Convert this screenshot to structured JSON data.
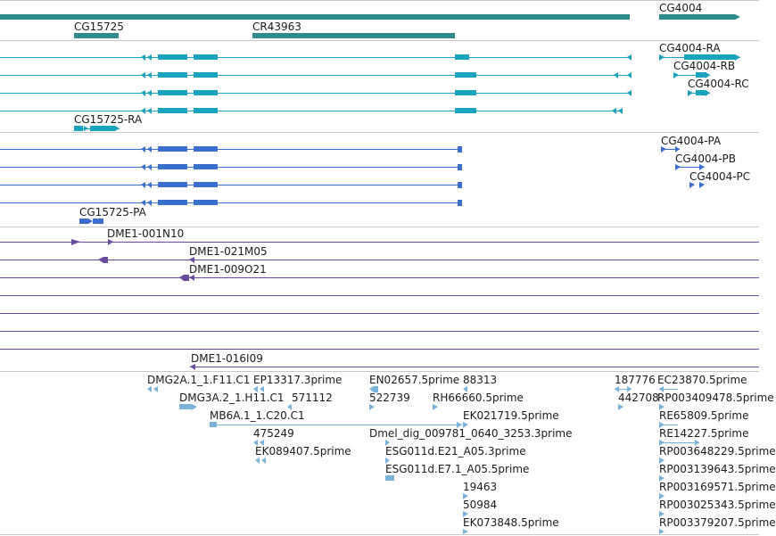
{
  "colors": {
    "gene": "#2e8b8b",
    "transcript_rna": "#1aa3bf",
    "transcript_protein": "#3a6fd0",
    "clone": "#6a4a9e",
    "est": "#7ab3d9",
    "separator": "#c8c8c8"
  },
  "genes": {
    "cg4004": "CG4004",
    "cg15725": "CG15725",
    "cr43963": "CR43963"
  },
  "transcripts": {
    "ra": "CG4004-RA",
    "rb": "CG4004-RB",
    "rc": "CG4004-RC",
    "cg15725_ra": "CG15725-RA"
  },
  "proteins": {
    "pa": "CG4004-PA",
    "pb": "CG4004-PB",
    "pc": "CG4004-PC",
    "cg15725_pa": "CG15725-PA"
  },
  "clones": {
    "c1": "DME1-001N10",
    "c2": "DME1-021M05",
    "c3": "DME1-009O21",
    "c4": "DME1-016I09"
  },
  "ests": {
    "e1": "DMG2A.1_1.F11.C1",
    "e2": "EP13317.3prime",
    "e3": "EN02657.5prime",
    "e4": "88313",
    "e5": "187776",
    "e6": "EC23870.5prime",
    "e7": "DMG3A.2_1.H11.C1",
    "e8": "571112",
    "e9": "522739",
    "e10": "RH66660.5prime",
    "e11": "442708",
    "e12": "RP003409478.5prime",
    "e13": "MB6A.1_1.C20.C1",
    "e14": "EK021719.5prime",
    "e15": "RE65809.5prime",
    "e16": "475249",
    "e17": "Dmel_dig_009781_0640_3253.3prime",
    "e18": "RE14227.5prime",
    "e19": "EK089407.5prime",
    "e20": "ESG011d.E21_A05.3prime",
    "e21": "RP003648229.5prime",
    "e22": "ESG011d.E7.1_A05.5prime",
    "e23": "RP003139643.5prime",
    "e24": "19463",
    "e25": "RP003169571.5prime",
    "e26": "50984",
    "e27": "RP003025343.5prime",
    "e28": "EK073848.5prime",
    "e29": "RP003379207.5prime"
  }
}
